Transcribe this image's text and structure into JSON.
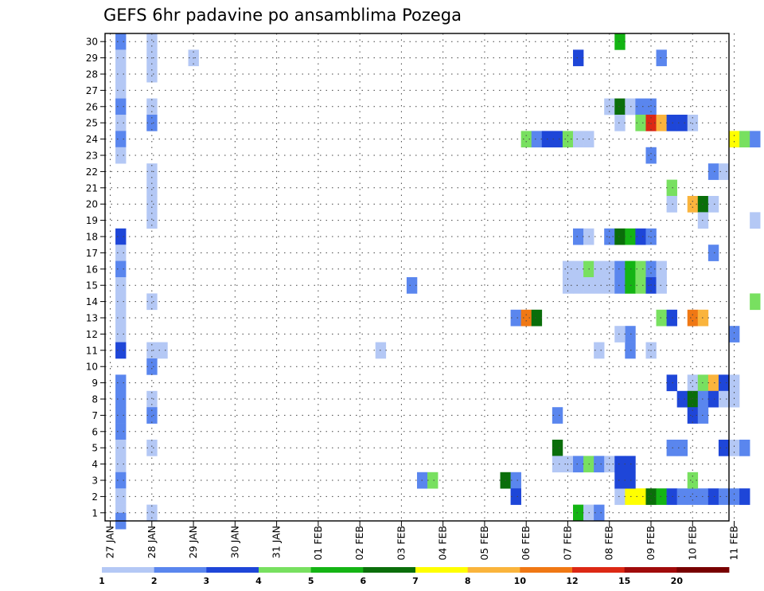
{
  "chart_data": {
    "type": "heatmap",
    "title": "GEFS 6hr padavine po ansamblima Pozega",
    "x_tick_labels": [
      "27 JAN",
      "28 JAN",
      "29 JAN",
      "30 JAN",
      "31 JAN",
      "01 FEB",
      "02 FEB",
      "03 FEB",
      "04 FEB",
      "05 FEB",
      "06 FEB",
      "07 FEB",
      "08 FEB",
      "09 FEB",
      "10 FEB",
      "11 FEB"
    ],
    "y_tick_labels": [
      "1",
      "2",
      "3",
      "4",
      "5",
      "6",
      "7",
      "8",
      "9",
      "10",
      "11",
      "12",
      "13",
      "14",
      "15",
      "16",
      "17",
      "18",
      "19",
      "20",
      "21",
      "22",
      "23",
      "24",
      "25",
      "26",
      "27",
      "28",
      "29",
      "30"
    ],
    "ylim": [
      1,
      30
    ],
    "grid": true,
    "colorbar": {
      "labels": [
        "1",
        "2",
        "3",
        "4",
        "5",
        "6",
        "7",
        "8",
        "10",
        "12",
        "15",
        "20"
      ],
      "colors": [
        "#b4c8f5",
        "#5a86ee",
        "#1e46d8",
        "#78e060",
        "#14b414",
        "#0a6e0a",
        "#ffff00",
        "#fab43c",
        "#f07814",
        "#dc2814",
        "#a00a0a",
        "#780000"
      ]
    },
    "cells": [
      {
        "x": 1,
        "y": 30,
        "c": 1
      },
      {
        "x": 1,
        "y": 29,
        "c": 0
      },
      {
        "x": 1,
        "y": 28,
        "c": 0
      },
      {
        "x": 1,
        "y": 27,
        "c": 0
      },
      {
        "x": 1,
        "y": 26,
        "c": 1
      },
      {
        "x": 1,
        "y": 25,
        "c": 0
      },
      {
        "x": 1,
        "y": 24,
        "c": 1
      },
      {
        "x": 1,
        "y": 23,
        "c": 0
      },
      {
        "x": 1,
        "y": 18,
        "c": 2
      },
      {
        "x": 1,
        "y": 17,
        "c": 0
      },
      {
        "x": 1,
        "y": 16,
        "c": 1
      },
      {
        "x": 1,
        "y": 15,
        "c": 0
      },
      {
        "x": 1,
        "y": 14,
        "c": 0
      },
      {
        "x": 1,
        "y": 13,
        "c": 0
      },
      {
        "x": 1,
        "y": 12,
        "c": 0
      },
      {
        "x": 1,
        "y": 11,
        "c": 2
      },
      {
        "x": 1,
        "y": 9,
        "c": 1
      },
      {
        "x": 1,
        "y": 8,
        "c": 1
      },
      {
        "x": 1,
        "y": 7,
        "c": 1
      },
      {
        "x": 1,
        "y": 6,
        "c": 1
      },
      {
        "x": 1,
        "y": 5,
        "c": 0
      },
      {
        "x": 1,
        "y": 4,
        "c": 0
      },
      {
        "x": 1,
        "y": 3,
        "c": 1
      },
      {
        "x": 1,
        "y": 2,
        "c": 0
      },
      {
        "x": 1,
        "y": 1,
        "c": 0
      },
      {
        "x": 1,
        "y": 0.5,
        "c": 1
      },
      {
        "x": 4,
        "y": 30,
        "c": 0
      },
      {
        "x": 4,
        "y": 29,
        "c": 0
      },
      {
        "x": 4,
        "y": 28,
        "c": 0
      },
      {
        "x": 4,
        "y": 26,
        "c": 0
      },
      {
        "x": 4,
        "y": 25,
        "c": 1
      },
      {
        "x": 4,
        "y": 22,
        "c": 0
      },
      {
        "x": 4,
        "y": 21,
        "c": 0
      },
      {
        "x": 4,
        "y": 20,
        "c": 0
      },
      {
        "x": 4,
        "y": 19,
        "c": 0
      },
      {
        "x": 4,
        "y": 14,
        "c": 0
      },
      {
        "x": 4,
        "y": 11,
        "c": 0
      },
      {
        "x": 5,
        "y": 11,
        "c": 0
      },
      {
        "x": 4,
        "y": 10,
        "c": 1
      },
      {
        "x": 4,
        "y": 8,
        "c": 0
      },
      {
        "x": 4,
        "y": 7,
        "c": 1
      },
      {
        "x": 4,
        "y": 5,
        "c": 0
      },
      {
        "x": 4,
        "y": 1,
        "c": 0
      },
      {
        "x": 8,
        "y": 29,
        "c": 0
      },
      {
        "x": 26,
        "y": 11,
        "c": 0
      },
      {
        "x": 29,
        "y": 15,
        "c": 1
      },
      {
        "x": 30,
        "y": 3,
        "c": 1
      },
      {
        "x": 31,
        "y": 3,
        "c": 3
      },
      {
        "x": 38,
        "y": 3,
        "c": 5
      },
      {
        "x": 39,
        "y": 3,
        "c": 1
      },
      {
        "x": 39,
        "y": 2,
        "c": 2
      },
      {
        "x": 39,
        "y": 13,
        "c": 1
      },
      {
        "x": 40,
        "y": 13,
        "c": 8
      },
      {
        "x": 41,
        "y": 13,
        "c": 5
      },
      {
        "x": 40,
        "y": 24,
        "c": 3
      },
      {
        "x": 41,
        "y": 24,
        "c": 1
      },
      {
        "x": 42,
        "y": 24,
        "c": 2
      },
      {
        "x": 43,
        "y": 24,
        "c": 2
      },
      {
        "x": 44,
        "y": 24,
        "c": 3
      },
      {
        "x": 45,
        "y": 24,
        "c": 0
      },
      {
        "x": 46,
        "y": 24,
        "c": 0
      },
      {
        "x": 43,
        "y": 5,
        "c": 5
      },
      {
        "x": 43,
        "y": 7,
        "c": 1
      },
      {
        "x": 43,
        "y": 4,
        "c": 0
      },
      {
        "x": 44,
        "y": 4,
        "c": 0
      },
      {
        "x": 45,
        "y": 4,
        "c": 1
      },
      {
        "x": 46,
        "y": 4,
        "c": 3
      },
      {
        "x": 47,
        "y": 4,
        "c": 1
      },
      {
        "x": 48,
        "y": 4,
        "c": 0
      },
      {
        "x": 49,
        "y": 4,
        "c": 2
      },
      {
        "x": 50,
        "y": 4,
        "c": 2
      },
      {
        "x": 45,
        "y": 1,
        "c": 4
      },
      {
        "x": 46,
        "y": 1,
        "c": 0
      },
      {
        "x": 47,
        "y": 1,
        "c": 1
      },
      {
        "x": 45,
        "y": 29,
        "c": 2
      },
      {
        "x": 44,
        "y": 16,
        "c": 0
      },
      {
        "x": 45,
        "y": 16,
        "c": 0
      },
      {
        "x": 46,
        "y": 16,
        "c": 3
      },
      {
        "x": 47,
        "y": 16,
        "c": 0
      },
      {
        "x": 48,
        "y": 16,
        "c": 0
      },
      {
        "x": 49,
        "y": 16,
        "c": 1
      },
      {
        "x": 50,
        "y": 16,
        "c": 4
      },
      {
        "x": 51,
        "y": 16,
        "c": 3
      },
      {
        "x": 52,
        "y": 16,
        "c": 1
      },
      {
        "x": 53,
        "y": 16,
        "c": 0
      },
      {
        "x": 44,
        "y": 15,
        "c": 0
      },
      {
        "x": 45,
        "y": 15,
        "c": 0
      },
      {
        "x": 46,
        "y": 15,
        "c": 0
      },
      {
        "x": 47,
        "y": 15,
        "c": 0
      },
      {
        "x": 48,
        "y": 15,
        "c": 0
      },
      {
        "x": 49,
        "y": 15,
        "c": 1
      },
      {
        "x": 50,
        "y": 15,
        "c": 4
      },
      {
        "x": 51,
        "y": 15,
        "c": 3
      },
      {
        "x": 52,
        "y": 15,
        "c": 2
      },
      {
        "x": 53,
        "y": 15,
        "c": 0
      },
      {
        "x": 45,
        "y": 18,
        "c": 1
      },
      {
        "x": 46,
        "y": 18,
        "c": 0
      },
      {
        "x": 48,
        "y": 18,
        "c": 1
      },
      {
        "x": 49,
        "y": 18,
        "c": 5
      },
      {
        "x": 50,
        "y": 18,
        "c": 4
      },
      {
        "x": 51,
        "y": 18,
        "c": 2
      },
      {
        "x": 52,
        "y": 18,
        "c": 1
      },
      {
        "x": 47,
        "y": 11,
        "c": 0
      },
      {
        "x": 52,
        "y": 11,
        "c": 0
      },
      {
        "x": 50,
        "y": 12,
        "c": 1
      },
      {
        "x": 50,
        "y": 11,
        "c": 1
      },
      {
        "x": 49,
        "y": 12,
        "c": 0
      },
      {
        "x": 48,
        "y": 26,
        "c": 0
      },
      {
        "x": 49,
        "y": 26,
        "c": 5
      },
      {
        "x": 50,
        "y": 26,
        "c": 0
      },
      {
        "x": 51,
        "y": 26,
        "c": 1
      },
      {
        "x": 52,
        "y": 26,
        "c": 1
      },
      {
        "x": 49,
        "y": 25,
        "c": 0
      },
      {
        "x": 51,
        "y": 25,
        "c": 3
      },
      {
        "x": 52,
        "y": 25,
        "c": 9
      },
      {
        "x": 53,
        "y": 25,
        "c": 7
      },
      {
        "x": 54,
        "y": 25,
        "c": 2
      },
      {
        "x": 55,
        "y": 25,
        "c": 2
      },
      {
        "x": 56,
        "y": 25,
        "c": 0
      },
      {
        "x": 49,
        "y": 30,
        "c": 4
      },
      {
        "x": 52,
        "y": 23,
        "c": 1
      },
      {
        "x": 49,
        "y": 2,
        "c": 0
      },
      {
        "x": 50,
        "y": 2,
        "c": 6
      },
      {
        "x": 51,
        "y": 2,
        "c": 6
      },
      {
        "x": 52,
        "y": 2,
        "c": 5
      },
      {
        "x": 53,
        "y": 2,
        "c": 4
      },
      {
        "x": 54,
        "y": 2,
        "c": 2
      },
      {
        "x": 55,
        "y": 2,
        "c": 1
      },
      {
        "x": 56,
        "y": 2,
        "c": 1
      },
      {
        "x": 57,
        "y": 2,
        "c": 1
      },
      {
        "x": 58,
        "y": 2,
        "c": 2
      },
      {
        "x": 59,
        "y": 2,
        "c": 1
      },
      {
        "x": 60,
        "y": 2,
        "c": 1
      },
      {
        "x": 61,
        "y": 2,
        "c": 2
      },
      {
        "x": 49,
        "y": 3,
        "c": 2
      },
      {
        "x": 50,
        "y": 3,
        "c": 2
      },
      {
        "x": 53,
        "y": 29,
        "c": 1
      },
      {
        "x": 53,
        "y": 13,
        "c": 3
      },
      {
        "x": 54,
        "y": 13,
        "c": 2
      },
      {
        "x": 56,
        "y": 13,
        "c": 8
      },
      {
        "x": 57,
        "y": 13,
        "c": 7
      },
      {
        "x": 54,
        "y": 21,
        "c": 3
      },
      {
        "x": 54,
        "y": 20,
        "c": 0
      },
      {
        "x": 54,
        "y": 5,
        "c": 1
      },
      {
        "x": 55,
        "y": 5,
        "c": 1
      },
      {
        "x": 56,
        "y": 3,
        "c": 3
      },
      {
        "x": 56,
        "y": 20,
        "c": 7
      },
      {
        "x": 57,
        "y": 20,
        "c": 5
      },
      {
        "x": 58,
        "y": 20,
        "c": 0
      },
      {
        "x": 57,
        "y": 19,
        "c": 0
      },
      {
        "x": 58,
        "y": 22,
        "c": 1
      },
      {
        "x": 59,
        "y": 22,
        "c": 0
      },
      {
        "x": 58,
        "y": 17,
        "c": 1
      },
      {
        "x": 60,
        "y": 12,
        "c": 1
      },
      {
        "x": 60,
        "y": 24,
        "c": 6
      },
      {
        "x": 61,
        "y": 24,
        "c": 3
      },
      {
        "x": 62,
        "y": 24,
        "c": 1
      },
      {
        "x": 62,
        "y": 19,
        "c": 0
      },
      {
        "x": 62,
        "y": 14,
        "c": 3
      },
      {
        "x": 54,
        "y": 9,
        "c": 2
      },
      {
        "x": 56,
        "y": 9,
        "c": 0
      },
      {
        "x": 57,
        "y": 9,
        "c": 3
      },
      {
        "x": 58,
        "y": 9,
        "c": 7
      },
      {
        "x": 59,
        "y": 9,
        "c": 2
      },
      {
        "x": 60,
        "y": 9,
        "c": 0
      },
      {
        "x": 55,
        "y": 8,
        "c": 2
      },
      {
        "x": 56,
        "y": 8,
        "c": 5
      },
      {
        "x": 57,
        "y": 8,
        "c": 1
      },
      {
        "x": 58,
        "y": 8,
        "c": 2
      },
      {
        "x": 59,
        "y": 8,
        "c": 0
      },
      {
        "x": 60,
        "y": 8,
        "c": 0
      },
      {
        "x": 56,
        "y": 7,
        "c": 2
      },
      {
        "x": 57,
        "y": 7,
        "c": 1
      },
      {
        "x": 59,
        "y": 5,
        "c": 2
      },
      {
        "x": 60,
        "y": 5,
        "c": 0
      },
      {
        "x": 61,
        "y": 5,
        "c": 1
      }
    ]
  }
}
